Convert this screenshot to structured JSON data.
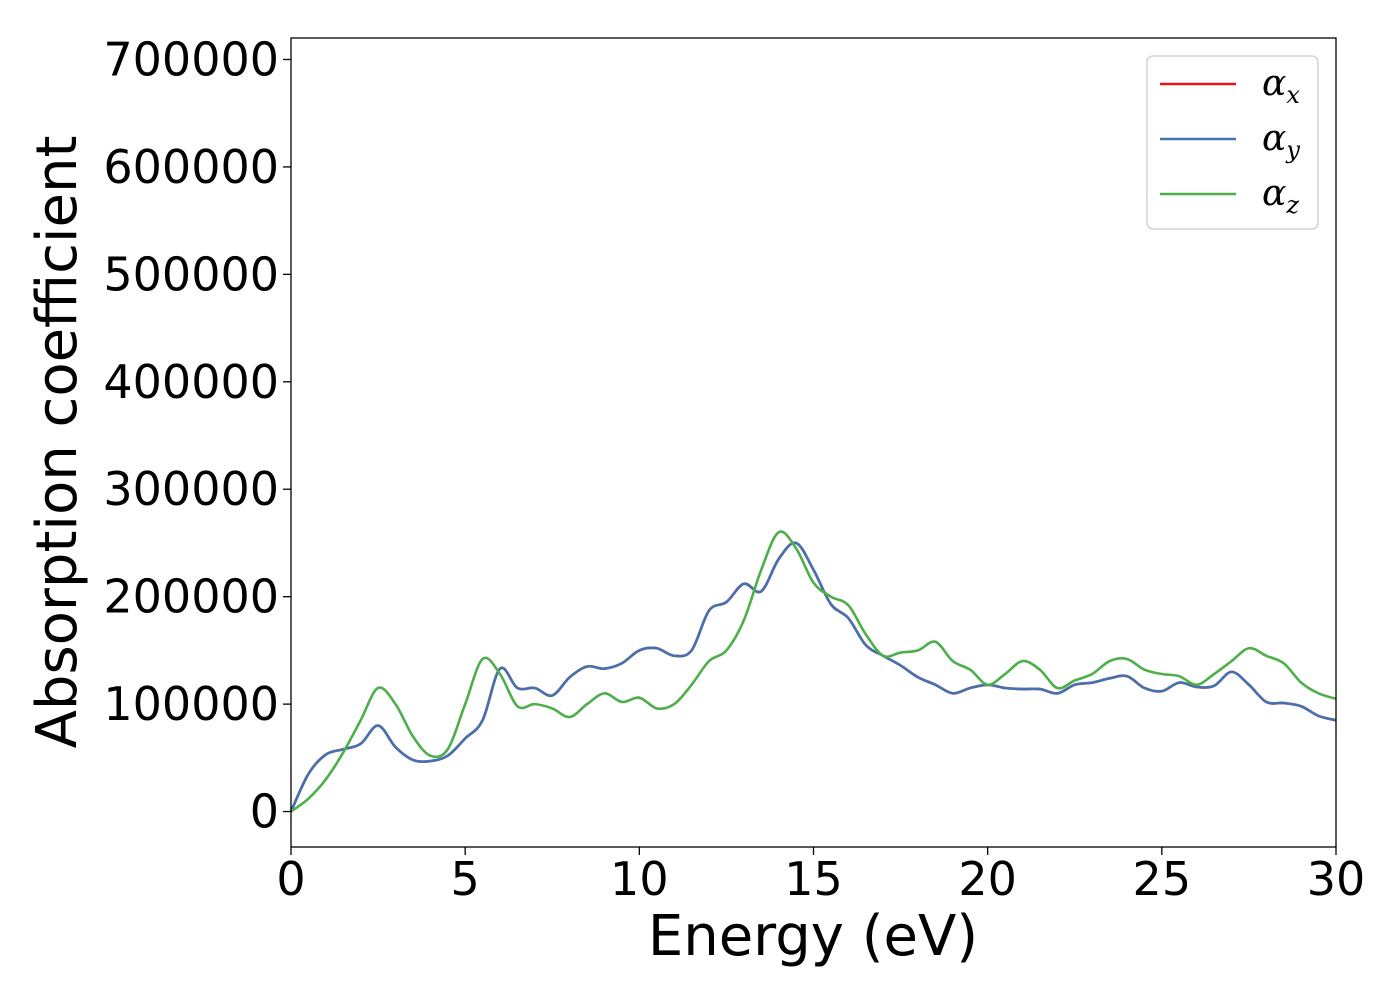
{
  "chart_data": {
    "type": "line",
    "title": "",
    "xlabel": "Energy (eV)",
    "ylabel": "Absorption coefficient",
    "xlim": [
      0,
      30
    ],
    "ylim": [
      -33000,
      720000
    ],
    "xticks": [
      0,
      5,
      10,
      15,
      20,
      25,
      30
    ],
    "yticks": [
      0,
      100000,
      200000,
      300000,
      400000,
      500000,
      600000,
      700000
    ],
    "grid": false,
    "legend_position": "top-right",
    "x": [
      0,
      0.5,
      1,
      1.5,
      2,
      2.5,
      3,
      3.5,
      4,
      4.5,
      5,
      5.5,
      6,
      6.5,
      7,
      7.5,
      8,
      8.5,
      9,
      9.5,
      10,
      10.5,
      11,
      11.5,
      12,
      12.5,
      13,
      13.5,
      14,
      14.5,
      15,
      15.5,
      16,
      16.5,
      17,
      17.5,
      18,
      18.5,
      19,
      19.5,
      20,
      20.5,
      21,
      21.5,
      22,
      22.5,
      23,
      23.5,
      24,
      24.5,
      25,
      25.5,
      26,
      26.5,
      27,
      27.5,
      28,
      28.5,
      29,
      29.5,
      30
    ],
    "series": [
      {
        "name": "α",
        "subscript": "x",
        "color": "#e41a1c",
        "values": [
          0,
          35000,
          53000,
          58000,
          63000,
          80000,
          60000,
          48000,
          47000,
          52000,
          68000,
          85000,
          133000,
          115000,
          115000,
          108000,
          125000,
          135000,
          133000,
          138000,
          150000,
          152000,
          145000,
          150000,
          187000,
          195000,
          212000,
          205000,
          235000,
          250000,
          225000,
          193000,
          180000,
          155000,
          145000,
          136000,
          125000,
          118000,
          110000,
          115000,
          118000,
          115000,
          114000,
          114000,
          110000,
          118000,
          120000,
          124000,
          126000,
          115000,
          112000,
          120000,
          116000,
          117000,
          130000,
          118000,
          102000,
          101000,
          98000,
          89000,
          85000
        ]
      },
      {
        "name": "α",
        "subscript": "y",
        "color": "#4472b0",
        "values": [
          0,
          35000,
          53000,
          58000,
          63000,
          80000,
          60000,
          48000,
          47000,
          52000,
          68000,
          85000,
          133000,
          115000,
          115000,
          108000,
          125000,
          135000,
          133000,
          138000,
          150000,
          152000,
          145000,
          150000,
          187000,
          195000,
          212000,
          205000,
          235000,
          250000,
          225000,
          193000,
          180000,
          155000,
          145000,
          136000,
          125000,
          118000,
          110000,
          115000,
          118000,
          115000,
          114000,
          114000,
          110000,
          118000,
          120000,
          124000,
          126000,
          115000,
          112000,
          120000,
          116000,
          117000,
          130000,
          118000,
          102000,
          101000,
          98000,
          89000,
          85000
        ]
      },
      {
        "name": "α",
        "subscript": "z",
        "color": "#4daf4a",
        "values": [
          0,
          12000,
          30000,
          55000,
          85000,
          115000,
          100000,
          70000,
          52000,
          58000,
          100000,
          142000,
          128000,
          98000,
          100000,
          96000,
          88000,
          100000,
          110000,
          102000,
          106000,
          96000,
          100000,
          118000,
          140000,
          150000,
          178000,
          225000,
          260000,
          245000,
          213000,
          200000,
          192000,
          165000,
          145000,
          148000,
          150000,
          158000,
          140000,
          132000,
          118000,
          128000,
          140000,
          132000,
          115000,
          122000,
          128000,
          140000,
          142000,
          132000,
          128000,
          126000,
          118000,
          128000,
          140000,
          152000,
          145000,
          138000,
          120000,
          110000,
          105000
        ]
      }
    ]
  }
}
